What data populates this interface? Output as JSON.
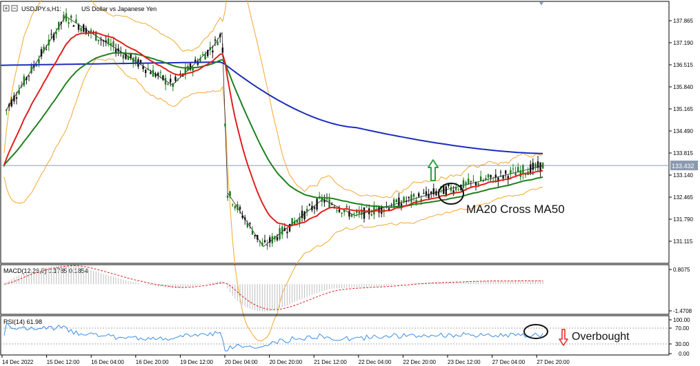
{
  "header": {
    "symbol_label": "USDJPY.s,H1:",
    "description": "US Dollar vs Japanese Yen",
    "toggle_icons": [
      "plus-box-icon",
      "minus-box-icon"
    ]
  },
  "colors": {
    "background": "#ffffff",
    "grid": "#c8c8c8",
    "candle_up": "#1f7a1f",
    "candle_down": "#111111",
    "ma20": "#e0201c",
    "ma50": "#1e7f1e",
    "ma200": "#1c2dbb",
    "bollinger": "#f2a72c",
    "price_line": "#8a9ab0",
    "macd_hist": "#bdbdbd",
    "macd_signal": "#d62020",
    "rsi_line": "#3a8ee6",
    "annotation": "#111111",
    "arrow_up": "#2ea043",
    "arrow_down": "#e02020"
  },
  "main_axis": {
    "ticks": [
      "137.865",
      "137.190",
      "136.515",
      "135.840",
      "135.165",
      "134.490",
      "133.815",
      "133.140",
      "132.465",
      "131.790",
      "131.115"
    ],
    "current_price": "133.432",
    "current_value": 133.432
  },
  "time_axis": {
    "labels": [
      "14 Dec 2022",
      "15 Dec 12:00",
      "16 Dec 04:00",
      "16 Dec 20:00",
      "19 Dec 12:00",
      "20 Dec 04:00",
      "20 Dec 20:00",
      "21 Dec 12:00",
      "22 Dec 04:00",
      "22 Dec 20:00",
      "23 Dec 12:00",
      "27 Dec 04:00",
      "27 Dec 20:00"
    ]
  },
  "macd_panel": {
    "title": "MACD(12,26,9) 0.1785 0.1854",
    "top_tick": "0.8075",
    "bottom_tick": "-1.4708"
  },
  "rsi_panel": {
    "title": "RSI(14) 61.98",
    "ticks": [
      "100.00",
      "70.00",
      "30.00",
      "0.00"
    ]
  },
  "annotations": {
    "cross_label": "MA20 Cross MA50",
    "overbought_label": "Overbought"
  },
  "chart_data": {
    "type": "candlestick",
    "symbol": "USDJPY.s",
    "timeframe": "H1",
    "ylim": [
      130.9,
      138.2
    ],
    "indicators": [
      "MA20",
      "MA50",
      "MA200",
      "Bollinger Bands",
      "MACD(12,26,9)",
      "RSI(14)"
    ],
    "key_points": [
      {
        "x": "14 Dec 2022",
        "price": 135.1
      },
      {
        "x": "15 Dec 12:00",
        "price": 138.0
      },
      {
        "x": "16 Dec 20:00",
        "price": 135.9
      },
      {
        "x": "19 Dec 12:00",
        "price": 137.1
      },
      {
        "x": "20 Dec 04:00",
        "price": 137.5
      },
      {
        "x": "20 Dec 04:00",
        "price": 132.6
      },
      {
        "x": "20 Dec 20:00",
        "price": 130.95
      },
      {
        "x": "21 Dec 12:00",
        "price": 132.4
      },
      {
        "x": "22 Dec 04:00",
        "price": 131.9
      },
      {
        "x": "23 Dec 12:00",
        "price": 132.7
      },
      {
        "x": "27 Dec 20:00",
        "price": 133.43
      }
    ],
    "ma200": [
      {
        "x": "14 Dec 2022",
        "value": 136.5
      },
      {
        "x": "20 Dec 04:00",
        "value": 136.6
      },
      {
        "x": "22 Dec 04:00",
        "value": 134.6
      },
      {
        "x": "27 Dec 20:00",
        "value": 133.8
      }
    ],
    "macd": {
      "main": 0.1785,
      "signal": 0.1854,
      "range": [
        -1.4708,
        0.8075
      ]
    },
    "rsi": {
      "value": 61.98,
      "levels": [
        70,
        30
      ],
      "range": [
        0,
        100
      ]
    }
  }
}
